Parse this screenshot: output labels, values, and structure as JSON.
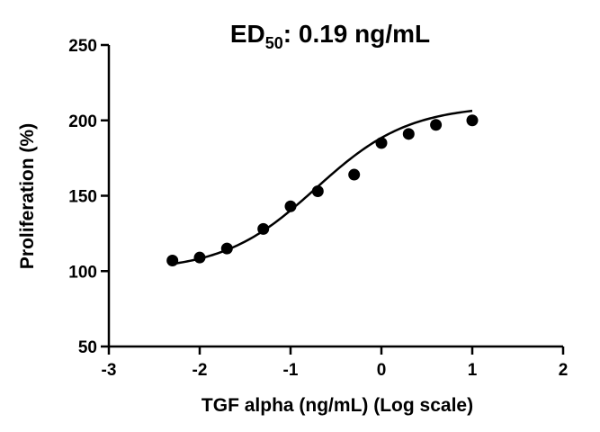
{
  "chart_data": {
    "type": "scatter",
    "title": {
      "prefix": "ED",
      "subscript": "50",
      "suffix": ": 0.19 ng/mL"
    },
    "xlabel": "TGF alpha (ng/mL) (Log scale)",
    "ylabel": "Proliferation (%)",
    "xlim": [
      -3,
      2
    ],
    "ylim": [
      50,
      250
    ],
    "xticks": [
      -3,
      -2,
      -1,
      0,
      1,
      2
    ],
    "yticks": [
      50,
      100,
      150,
      200,
      250
    ],
    "grid": false,
    "points": [
      {
        "x": -2.3,
        "y": 107
      },
      {
        "x": -2.0,
        "y": 109
      },
      {
        "x": -1.7,
        "y": 115
      },
      {
        "x": -1.3,
        "y": 128
      },
      {
        "x": -1.0,
        "y": 143
      },
      {
        "x": -0.7,
        "y": 153
      },
      {
        "x": -0.3,
        "y": 164
      },
      {
        "x": 0.0,
        "y": 185
      },
      {
        "x": 0.3,
        "y": 191
      },
      {
        "x": 0.6,
        "y": 197
      },
      {
        "x": 1.0,
        "y": 200
      }
    ],
    "fit_curve": {
      "model": "four-parameter logistic",
      "bottom": 100,
      "top": 210,
      "log_ec50": -0.72,
      "hill_slope": 0.85,
      "x_range": [
        -2.3,
        1.0
      ]
    },
    "colors": {
      "marker": "#000000",
      "line": "#000000",
      "axis": "#000000"
    }
  }
}
